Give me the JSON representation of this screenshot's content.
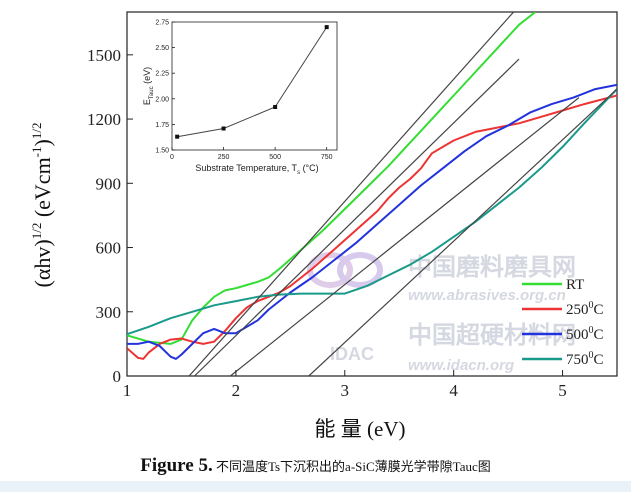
{
  "colors": {
    "RT": "#33dd33",
    "250°C": "#ee3333",
    "500°C": "#2233dd",
    "750°C": "#1a9a8a",
    "fit": "#444444"
  },
  "chart_data": [
    {
      "type": "line",
      "xlabel": "能 量 (eV)",
      "ylabel": "(αhv)^1/2 (eVcm^-1)^1/2",
      "xlim": [
        1,
        5.5
      ],
      "ylim": [
        0,
        1700
      ],
      "xticks": [
        "1",
        "2",
        "3",
        "4",
        "5"
      ],
      "yticks": [
        "0",
        "300",
        "600",
        "900",
        "1200",
        "1500"
      ],
      "legend_position": "bottom-right",
      "series": [
        {
          "name": "RT",
          "x": [
            1.0,
            1.2,
            1.4,
            1.5,
            1.6,
            1.7,
            1.8,
            1.9,
            2.0,
            2.1,
            2.2,
            2.3,
            2.4,
            2.5,
            2.6,
            2.8,
            3.0,
            3.2,
            3.4,
            3.6,
            3.8,
            4.0,
            4.2,
            4.4,
            4.6,
            4.75
          ],
          "y": [
            190,
            160,
            150,
            170,
            260,
            320,
            370,
            400,
            410,
            425,
            440,
            460,
            500,
            545,
            590,
            680,
            780,
            880,
            980,
            1090,
            1200,
            1310,
            1420,
            1530,
            1640,
            1700
          ]
        },
        {
          "name": "250°C",
          "x": [
            1.0,
            1.1,
            1.15,
            1.2,
            1.3,
            1.4,
            1.5,
            1.6,
            1.7,
            1.8,
            1.9,
            2.0,
            2.1,
            2.2,
            2.3,
            2.4,
            2.5,
            2.7,
            2.9,
            3.1,
            3.3,
            3.4,
            3.5,
            3.6,
            3.7,
            3.8,
            3.9,
            4.0,
            4.2,
            4.4,
            4.6,
            4.8,
            5.0,
            5.2,
            5.5
          ],
          "y": [
            130,
            85,
            80,
            110,
            150,
            170,
            175,
            160,
            150,
            160,
            210,
            270,
            320,
            350,
            370,
            390,
            420,
            500,
            590,
            680,
            770,
            830,
            880,
            920,
            970,
            1040,
            1070,
            1100,
            1140,
            1160,
            1180,
            1210,
            1240,
            1270,
            1310
          ]
        },
        {
          "name": "500°C",
          "x": [
            1.0,
            1.1,
            1.2,
            1.3,
            1.4,
            1.45,
            1.5,
            1.6,
            1.7,
            1.8,
            1.9,
            2.0,
            2.1,
            2.2,
            2.3,
            2.5,
            2.7,
            2.9,
            3.1,
            3.3,
            3.5,
            3.7,
            3.9,
            4.1,
            4.3,
            4.5,
            4.7,
            4.9,
            5.1,
            5.3,
            5.5
          ],
          "y": [
            150,
            150,
            160,
            140,
            90,
            80,
            100,
            150,
            200,
            220,
            200,
            200,
            230,
            260,
            310,
            390,
            460,
            540,
            620,
            710,
            800,
            890,
            970,
            1050,
            1120,
            1170,
            1230,
            1270,
            1300,
            1340,
            1360
          ]
        },
        {
          "name": "750°C",
          "x": [
            1.0,
            1.2,
            1.4,
            1.6,
            1.8,
            2.0,
            2.2,
            2.4,
            2.6,
            2.8,
            3.0,
            3.2,
            3.4,
            3.6,
            3.8,
            4.0,
            4.2,
            4.4,
            4.6,
            4.8,
            5.0,
            5.2,
            5.5
          ],
          "y": [
            195,
            230,
            270,
            300,
            330,
            350,
            370,
            380,
            385,
            385,
            385,
            420,
            470,
            520,
            580,
            650,
            720,
            800,
            880,
            970,
            1070,
            1180,
            1340
          ]
        },
        {
          "x": [
            1.57,
            4.55
          ],
          "y": [
            0,
            1700
          ]
        },
        {
          "x": [
            1.62,
            4.6
          ],
          "y": [
            0,
            1480
          ]
        },
        {
          "x": [
            1.95,
            5.15
          ],
          "y": [
            0,
            1300
          ]
        },
        {
          "x": [
            2.67,
            5.5
          ],
          "y": [
            0,
            1340
          ]
        }
      ]
    },
    {
      "type": "line",
      "xlabel": "Substrate Temperature, Ts (°C)",
      "ylabel": "E_Tauc (eV)",
      "xlim": [
        0,
        800
      ],
      "ylim": [
        1.5,
        2.75
      ],
      "xticks": [
        "0",
        "250",
        "500",
        "750"
      ],
      "yticks": [
        "1.50",
        "1.75",
        "2.00",
        "2.25",
        "2.50",
        "2.75"
      ],
      "series": [
        {
          "x": [
            25,
            250,
            500,
            750
          ],
          "y": [
            1.63,
            1.71,
            1.92,
            2.7
          ]
        }
      ]
    }
  ],
  "watermarks": [
    "中国磨料磨具网",
    "www.abrasives.org.cn",
    "中国超硬材料网",
    "www.idacn.org",
    "IDAC"
  ],
  "caption": {
    "label": "Figure 5.",
    "text": "不同温度Ts下沉积出的a-SiC薄膜光学带隙Tauc图"
  }
}
